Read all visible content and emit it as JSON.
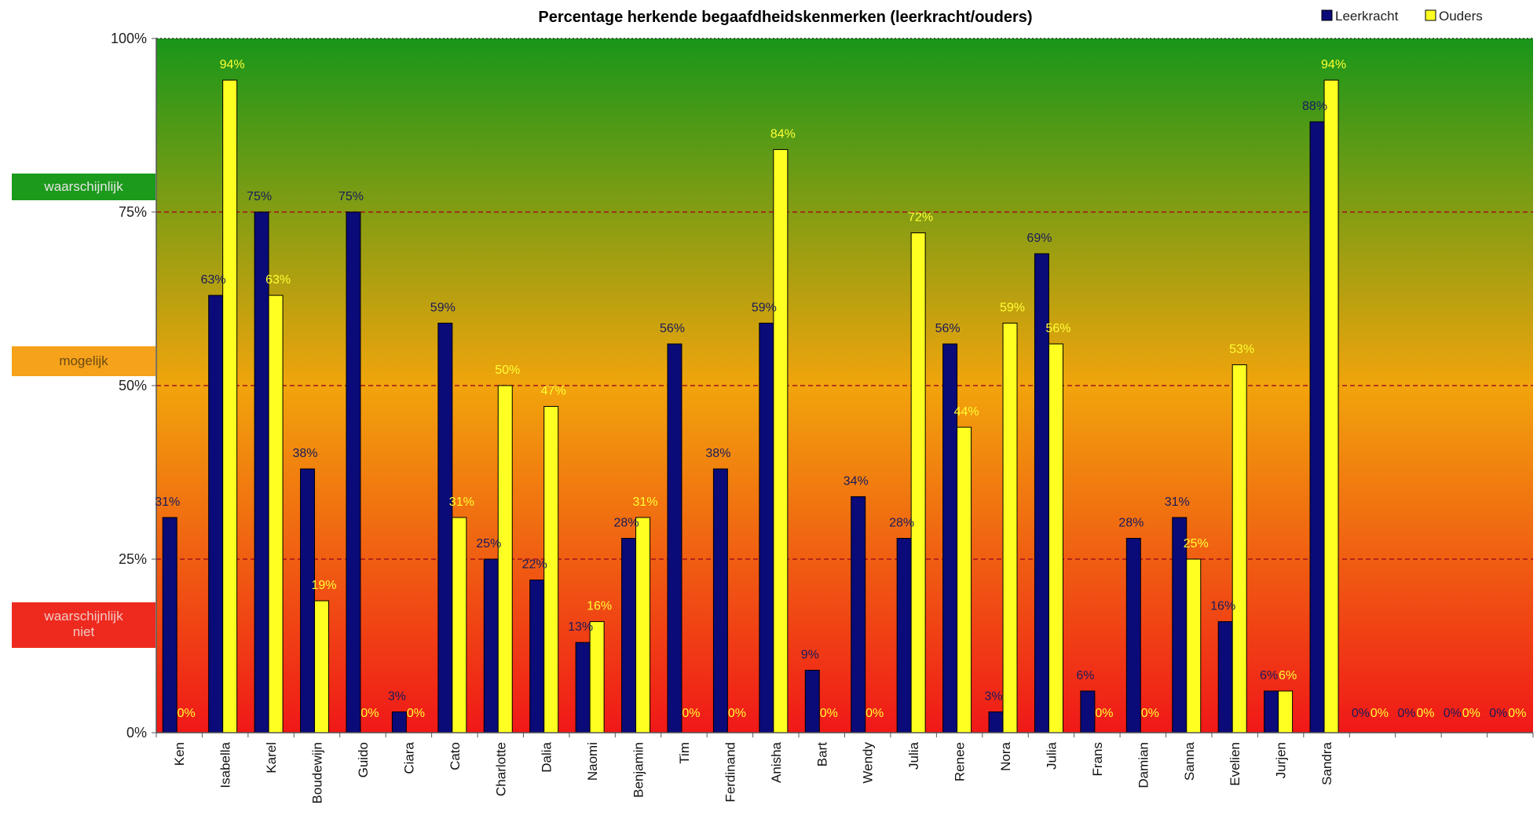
{
  "chart_data": {
    "type": "bar",
    "title": "Percentage herkende begaafdheidskenmerken (leerkracht/ouders)",
    "categories": [
      "Ken",
      "Isabella",
      "Karel",
      "Boudewijn",
      "Guido",
      "Ciara",
      "Cato",
      "Charlotte",
      "Dalia",
      "Naomi",
      "Benjamin",
      "Tim",
      "Ferdinand",
      "Anisha",
      "Bart",
      "Wendy",
      "Julia",
      "Renee",
      "Nora",
      "Julia",
      "Frans",
      "Damian",
      "Sanna",
      "Evelien",
      "Jurjen",
      "Sandra",
      "",
      "",
      "",
      ""
    ],
    "series": [
      {
        "name": "Leerkracht",
        "color": "#0a0a78",
        "values": [
          31,
          63,
          75,
          38,
          75,
          3,
          59,
          25,
          22,
          13,
          28,
          56,
          38,
          59,
          9,
          34,
          28,
          56,
          3,
          69,
          6,
          28,
          31,
          16,
          6,
          88,
          0,
          0,
          0,
          0
        ],
        "labels": [
          "31%",
          "63%",
          "75%",
          "38%",
          "75%",
          "3%",
          "59%",
          "25%",
          "22%",
          "13%",
          "28%",
          "56%",
          "38%",
          "59%",
          "9%",
          "34%",
          "28%",
          "56%",
          "3%",
          "69%",
          "6%",
          "28%",
          "31%",
          "16%",
          "6%",
          "88%",
          "0%",
          "0%",
          "0%",
          "0%"
        ]
      },
      {
        "name": "Ouders",
        "color": "#ffff22",
        "values": [
          0,
          94,
          63,
          19,
          0,
          0,
          31,
          50,
          47,
          16,
          31,
          0,
          0,
          84,
          0,
          0,
          72,
          44,
          59,
          56,
          0,
          0,
          25,
          53,
          6,
          94,
          0,
          0,
          0,
          0
        ],
        "labels": [
          "0%",
          "94%",
          "63%",
          "19%",
          "0%",
          "0%",
          "31%",
          "50%",
          "47%",
          "16%",
          "31%",
          "0%",
          "0%",
          "84%",
          "0%",
          "0%",
          "72%",
          "44%",
          "59%",
          "56%",
          "0%",
          "0%",
          "25%",
          "53%",
          "6%",
          "94%",
          "0%",
          "0%",
          "0%",
          "0%"
        ]
      }
    ],
    "ylim": [
      0,
      100
    ],
    "yticks": [
      "0%",
      "25%",
      "50%",
      "75%",
      "100%"
    ],
    "legend_position": "top-right",
    "bands": [
      {
        "label_lines": [
          "waarschijnlijk"
        ],
        "color": "#1b9a1b"
      },
      {
        "label_lines": [
          "mogelijk"
        ],
        "color": "#f6a21a"
      },
      {
        "label_lines": [
          "waarschijnlijk",
          "niet"
        ],
        "color": "#ee2a1e"
      }
    ],
    "background_gradient": [
      "#18961a",
      "#f1a40c",
      "#f01818"
    ],
    "reference_lines": [
      25,
      50,
      75
    ]
  }
}
